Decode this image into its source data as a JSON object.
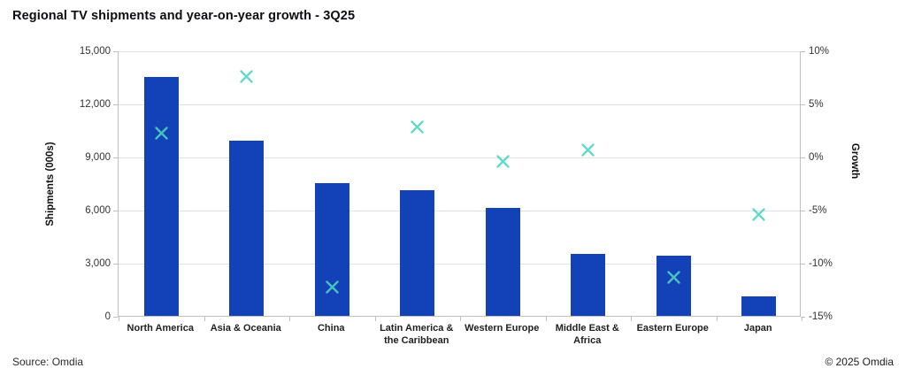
{
  "title": "Regional TV shipments and year-on-year growth - 3Q25",
  "footer": {
    "source": "Source: Omdia",
    "copyright": "© 2025 Omdia"
  },
  "colors": {
    "bar": "#1341b8",
    "marker": "#4fd4bf",
    "gridline": "#e2e2e2",
    "axis": "#bfbfbf"
  },
  "chart_data": {
    "type": "bar",
    "subtype": "bar-with-scatter-secondary-axis",
    "title": "Regional TV shipments and year-on-year growth - 3Q25",
    "categories": [
      "North America",
      "Asia & Oceania",
      "China",
      "Latin America & the Caribbean",
      "Western Europe",
      "Middle East & Africa",
      "Eastern Europe",
      "Japan"
    ],
    "series": [
      {
        "name": "Shipments (000s)",
        "type": "bar",
        "axis": "left",
        "color": "#1341b8",
        "values": [
          13500,
          9900,
          7500,
          7100,
          6100,
          3500,
          3400,
          1100
        ]
      },
      {
        "name": "Growth",
        "type": "scatter",
        "marker": "x",
        "axis": "right",
        "color": "#4fd4bf",
        "values": [
          2.3,
          7.6,
          -12.2,
          2.9,
          -0.4,
          0.7,
          -11.3,
          -5.4
        ]
      }
    ],
    "left_axis": {
      "label": "Shipments (000s)",
      "min": 0,
      "max": 15000,
      "tick_step": 3000,
      "ticks": [
        "15,000",
        "12,000",
        "9,000",
        "6,000",
        "3,000",
        "0"
      ]
    },
    "right_axis": {
      "label": "Growth",
      "min": -15,
      "max": 10,
      "tick_step": 5,
      "ticks": [
        "10%",
        "5%",
        "0%",
        "-5%",
        "-10%",
        "-15%"
      ]
    },
    "grid": true,
    "legend_position": "none"
  }
}
